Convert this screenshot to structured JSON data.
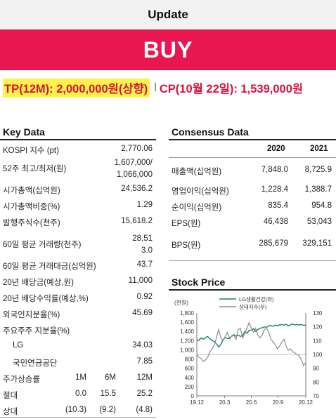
{
  "header": {
    "update": "Update",
    "rating": "BUY"
  },
  "target": {
    "tp": "TP(12M): 2,000,000원(상향)",
    "separator": "l",
    "cp": "CP(10월 22일): 1,539,000원"
  },
  "key_data": {
    "title": "Key Data",
    "rows": [
      {
        "label": "KOSPI 지수 (pt)",
        "value": "2,770.06"
      },
      {
        "label": "52주 최고/최저(원)",
        "value": "1,607,000/",
        "value2": "1,066,000"
      },
      {
        "label": "시가총액(십억원)",
        "value": "24,536.2"
      },
      {
        "label": "시가총액비중(%)",
        "value": "1.29"
      },
      {
        "label": "발행주식수(천주)",
        "value": "15,618.2"
      },
      {
        "label": "60일 평균 거래량(천주)",
        "value": "28,51",
        "value2": "3.0"
      },
      {
        "label": "60일 평균 거래대금(십억원)",
        "value": "43.7"
      },
      {
        "label": "20년 배당금(예상,원)",
        "value": "11,000"
      },
      {
        "label": "20년 배당수익률(예상,%)",
        "value": "0.92"
      },
      {
        "label": "외국인지분율(%)",
        "value": "45.69"
      },
      {
        "label": "주요주주 지분율(%)",
        "value": ""
      },
      {
        "label": "LG",
        "value": "34.03"
      },
      {
        "label": "국민연금공단",
        "value": "7.85"
      }
    ],
    "returns": {
      "header": [
        "주가상승률",
        "1M",
        "6M",
        "12M"
      ],
      "rows": [
        [
          "절대",
          "0.0",
          "15.5",
          "25.2"
        ],
        [
          "상대",
          "(10.3)",
          "(9.2)",
          "(4.8)"
        ]
      ]
    }
  },
  "consensus": {
    "title": "Consensus Data",
    "years": [
      "2020",
      "2021"
    ],
    "rows": [
      {
        "label": "매출액(십억원)",
        "v1": "7,848.0",
        "v2": "8,725.9"
      },
      {
        "label": "영업이익(십억원)",
        "v1": "1,228.4",
        "v2": "1,388.7"
      },
      {
        "label": "순이익(십억원)",
        "v1": "835.4",
        "v2": "954.8"
      },
      {
        "label": "EPS(원)",
        "v1": "46,438",
        "v2": "53,043"
      },
      {
        "label": "BPS(원)",
        "v1": "285,679",
        "v2": "329,151"
      }
    ]
  },
  "stock_price": {
    "title": "Stock Price",
    "chart_data": {
      "type": "line",
      "title": "Stock Price",
      "ylabel": "(천원)",
      "x_ticks": [
        "19.12",
        "20.3",
        "20.6",
        "20.9",
        "20.12"
      ],
      "y_left": {
        "lim": [
          0,
          1800
        ],
        "ticks": [
          "0",
          "200",
          "400",
          "600",
          "800",
          "1,000",
          "1,200",
          "1,400",
          "1,600",
          "1,800"
        ]
      },
      "y_right": {
        "lim": [
          70,
          130
        ],
        "ticks": [
          "70",
          "80",
          "90",
          "100",
          "110",
          "120",
          "130"
        ]
      },
      "series": [
        {
          "name": "LG생활건강(좌)",
          "axis": "left",
          "color": "#1f7a72",
          "points": [
            [
              0.0,
              1200
            ],
            [
              0.02,
              1210
            ],
            [
              0.04,
              1260
            ],
            [
              0.06,
              1230
            ],
            [
              0.08,
              1270
            ],
            [
              0.1,
              1290
            ],
            [
              0.12,
              1240
            ],
            [
              0.14,
              1200
            ],
            [
              0.16,
              1180
            ],
            [
              0.18,
              1130
            ],
            [
              0.2,
              1060
            ],
            [
              0.22,
              1120
            ],
            [
              0.24,
              1210
            ],
            [
              0.26,
              1270
            ],
            [
              0.28,
              1250
            ],
            [
              0.3,
              1240
            ],
            [
              0.32,
              1300
            ],
            [
              0.34,
              1330
            ],
            [
              0.36,
              1300
            ],
            [
              0.38,
              1320
            ],
            [
              0.4,
              1290
            ],
            [
              0.42,
              1310
            ],
            [
              0.44,
              1400
            ],
            [
              0.46,
              1360
            ],
            [
              0.48,
              1420
            ],
            [
              0.5,
              1430
            ],
            [
              0.52,
              1460
            ],
            [
              0.54,
              1400
            ],
            [
              0.56,
              1440
            ],
            [
              0.58,
              1470
            ],
            [
              0.6,
              1480
            ],
            [
              0.62,
              1500
            ],
            [
              0.64,
              1490
            ],
            [
              0.66,
              1520
            ],
            [
              0.68,
              1530
            ],
            [
              0.7,
              1510
            ],
            [
              0.72,
              1540
            ],
            [
              0.74,
              1520
            ],
            [
              0.76,
              1545
            ],
            [
              0.78,
              1550
            ],
            [
              0.8,
              1535
            ],
            [
              0.82,
              1555
            ],
            [
              0.84,
              1520
            ],
            [
              0.86,
              1545
            ],
            [
              0.88,
              1560
            ],
            [
              0.9,
              1540
            ],
            [
              0.92,
              1555
            ],
            [
              0.94,
              1540
            ],
            [
              0.96,
              1550
            ],
            [
              0.98,
              1530
            ],
            [
              1.0,
              1539
            ]
          ]
        },
        {
          "name": "상대지수(우)",
          "axis": "right",
          "color": "#8c8c8c",
          "points": [
            [
              0.0,
              100
            ],
            [
              0.02,
              98
            ],
            [
              0.04,
              97
            ],
            [
              0.06,
              95
            ],
            [
              0.08,
              96
            ],
            [
              0.1,
              98
            ],
            [
              0.12,
              102
            ],
            [
              0.14,
              104
            ],
            [
              0.16,
              107
            ],
            [
              0.18,
              112
            ],
            [
              0.2,
              118
            ],
            [
              0.22,
              112
            ],
            [
              0.24,
              110
            ],
            [
              0.26,
              113
            ],
            [
              0.28,
              116
            ],
            [
              0.3,
              112
            ],
            [
              0.32,
              113
            ],
            [
              0.34,
              114
            ],
            [
              0.36,
              111
            ],
            [
              0.38,
              118
            ],
            [
              0.4,
              119
            ],
            [
              0.42,
              112
            ],
            [
              0.44,
              115
            ],
            [
              0.46,
              119
            ],
            [
              0.48,
              123
            ],
            [
              0.5,
              119
            ],
            [
              0.52,
              116
            ],
            [
              0.54,
              119
            ],
            [
              0.56,
              114
            ],
            [
              0.58,
              112
            ],
            [
              0.6,
              114
            ],
            [
              0.62,
              118
            ],
            [
              0.64,
              119
            ],
            [
              0.66,
              116
            ],
            [
              0.68,
              111
            ],
            [
              0.7,
              109
            ],
            [
              0.72,
              107
            ],
            [
              0.74,
              104
            ],
            [
              0.76,
              106
            ],
            [
              0.78,
              109
            ],
            [
              0.8,
              111
            ],
            [
              0.82,
              106
            ],
            [
              0.84,
              103
            ],
            [
              0.86,
              104
            ],
            [
              0.88,
              102
            ],
            [
              0.9,
              101
            ],
            [
              0.92,
              100
            ],
            [
              0.94,
              99
            ],
            [
              0.96,
              96
            ],
            [
              0.98,
              92
            ],
            [
              1.0,
              94
            ]
          ]
        }
      ]
    }
  }
}
